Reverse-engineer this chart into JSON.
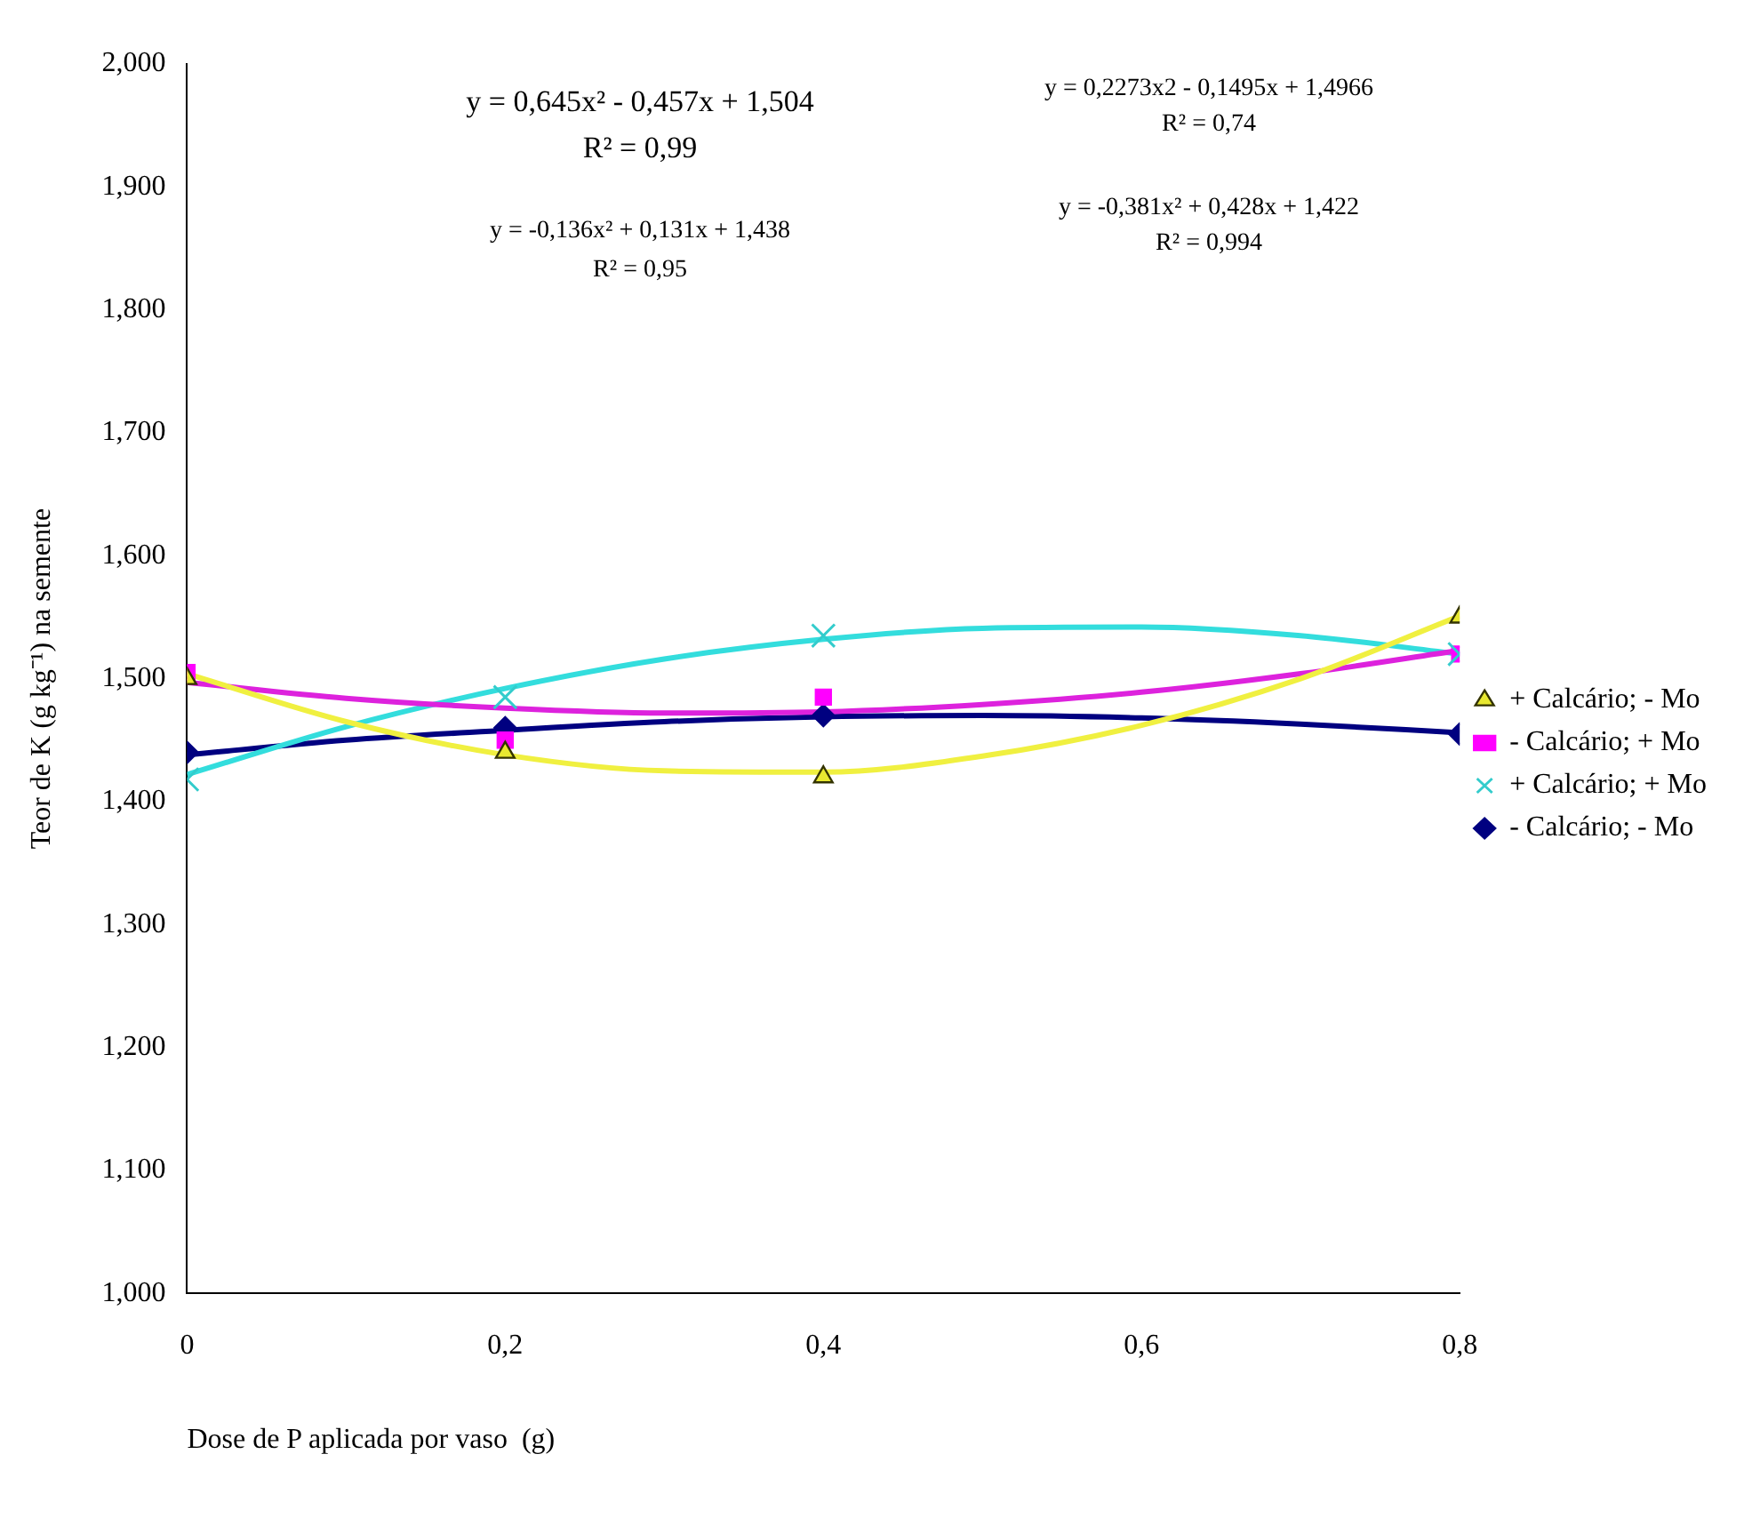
{
  "chart_data": {
    "type": "scatter",
    "xlabel": "Dose de P aplicada por vaso  (g)",
    "ylabel": "Teor de K (g kg⁻¹) na semente",
    "xlim": [
      0,
      0.8
    ],
    "xticks": [
      0,
      {
        "value": 0.2,
        "label": "0,2"
      },
      {
        "value": 0.4,
        "label": "0,4"
      },
      {
        "value": 0.6,
        "label": "0,6"
      },
      {
        "value": 0.8,
        "label": "0,8"
      }
    ],
    "ylim": [
      1,
      2
    ],
    "yticks": [
      {
        "value": 1,
        "label": "1,000"
      },
      {
        "value": 1.1,
        "label": "1,100"
      },
      {
        "value": 1.2,
        "label": "1,200"
      },
      {
        "value": 1.3,
        "label": "1,300"
      },
      {
        "value": 1.4,
        "label": "1,400"
      },
      {
        "value": 1.5,
        "label": "1,500"
      },
      {
        "value": 1.6,
        "label": "1,600"
      },
      {
        "value": 1.7,
        "label": "1,700"
      },
      {
        "value": 1.8,
        "label": "1,800"
      },
      {
        "value": 1.9,
        "label": "1,900"
      },
      {
        "value": 2,
        "label": "2,000"
      }
    ],
    "grid": false,
    "legend": "right",
    "series": [
      {
        "name": "+ Calcário; - Mo",
        "type": "scatter",
        "marker": "triangle",
        "color": "#e8e830",
        "x": [
          0,
          0.2,
          0.4,
          0.8
        ],
        "values": [
          1.5,
          1.44,
          1.42,
          1.55
        ]
      },
      {
        "name": "- Calcário; + Mo",
        "type": "scatter",
        "marker": "square",
        "color": "#ff00ff",
        "x": [
          0,
          0.2,
          0.4,
          0.8
        ],
        "values": [
          1.505,
          1.45,
          1.485,
          1.52
        ]
      },
      {
        "name": "+ Calcário; + Mo",
        "type": "scatter",
        "marker": "cross",
        "color": "#33cccc",
        "x": [
          0,
          0.2,
          0.4,
          0.8
        ],
        "values": [
          1.418,
          1.485,
          1.535,
          1.52
        ]
      },
      {
        "name": "- Calcário; - Mo",
        "type": "scatter",
        "marker": "diamond",
        "color": "#000080",
        "x": [
          0,
          0.2,
          0.4,
          0.8
        ],
        "values": [
          1.44,
          1.46,
          1.47,
          1.455
        ]
      },
      {
        "type": "line",
        "marker": "none",
        "color": "#f0f040",
        "x": [
          0,
          0.1,
          0.2,
          0.3,
          0.4,
          0.5,
          0.6,
          0.7,
          0.8
        ],
        "values": [
          1.504,
          1.465,
          1.438,
          1.425,
          1.424,
          1.437,
          1.462,
          1.5,
          1.551
        ]
      },
      {
        "type": "line",
        "marker": "none",
        "color": "#dd22dd",
        "x": [
          0,
          0.1,
          0.2,
          0.3,
          0.4,
          0.5,
          0.6,
          0.7,
          0.8
        ],
        "values": [
          1.497,
          1.484,
          1.476,
          1.472,
          1.473,
          1.479,
          1.489,
          1.504,
          1.523
        ]
      },
      {
        "type": "line",
        "marker": "none",
        "color": "#33dddd",
        "x": [
          0,
          0.1,
          0.2,
          0.3,
          0.4,
          0.5,
          0.6,
          0.7,
          0.8
        ],
        "values": [
          1.422,
          1.461,
          1.492,
          1.516,
          1.532,
          1.541,
          1.542,
          1.535,
          1.52
        ]
      },
      {
        "type": "line",
        "marker": "none",
        "color": "#000080",
        "x": [
          0,
          0.1,
          0.2,
          0.3,
          0.4,
          0.5,
          0.6,
          0.7,
          0.8
        ],
        "values": [
          1.438,
          1.45,
          1.458,
          1.465,
          1.469,
          1.47,
          1.468,
          1.463,
          1.456
        ]
      }
    ],
    "annotations": [
      "y = 0,645x² - 0,457x + 1,504",
      "R² = 0,99",
      "y = -0,136x² + 0,131x + 1,438",
      "R² = 0,95",
      "y = 0,2273x2 - 0,1495x + 1,4966",
      "R² = 0,74",
      "y = -0,381x² + 0,428x + 1,422",
      "R² = 0,994"
    ]
  }
}
